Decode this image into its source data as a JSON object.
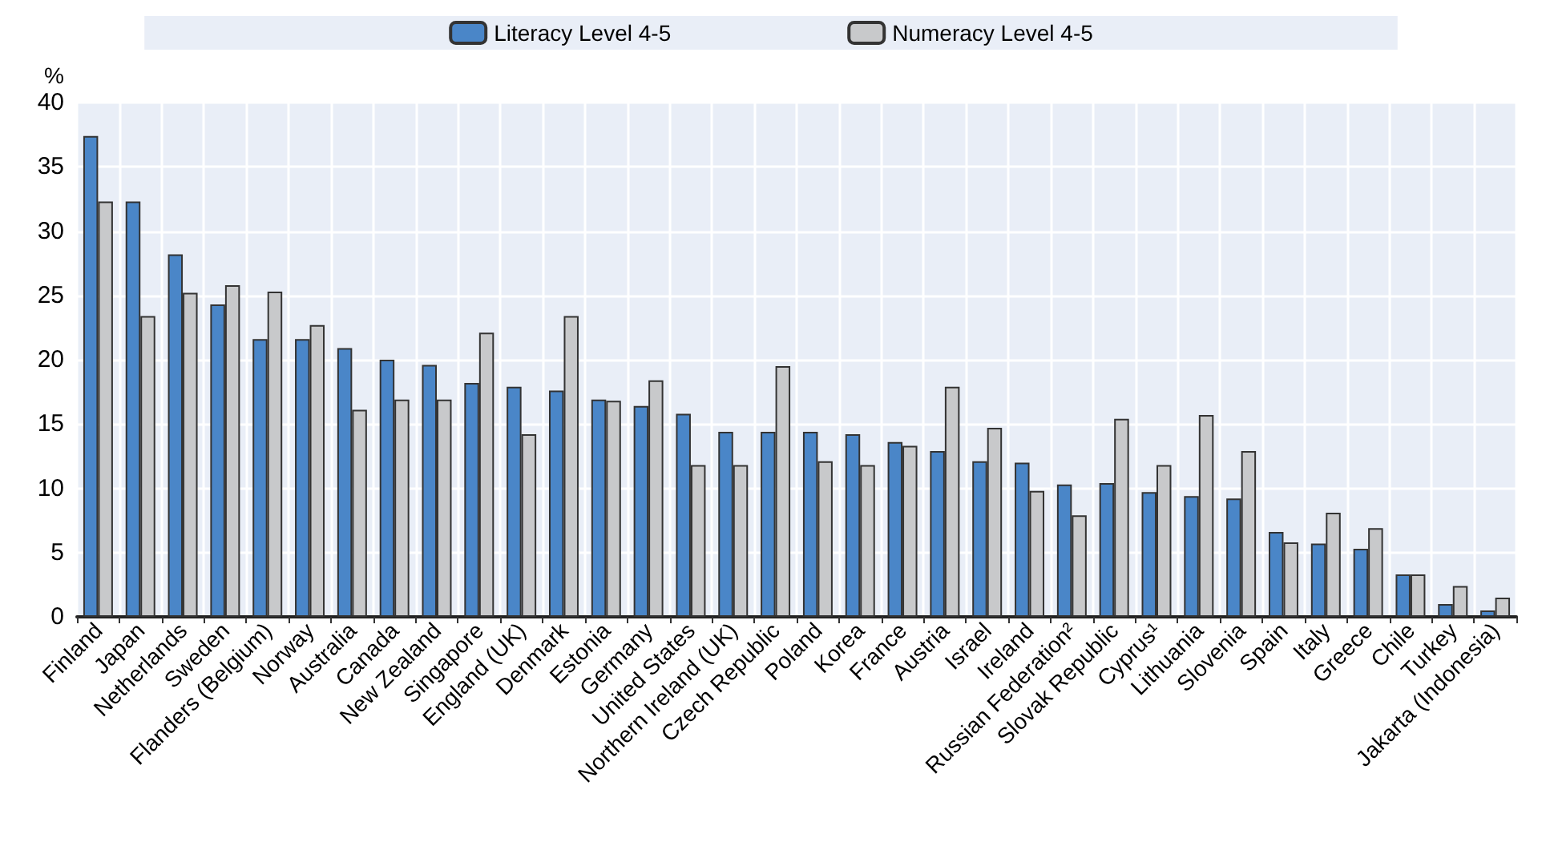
{
  "chart_data": {
    "type": "bar",
    "ylabel": "%",
    "categories": [
      "Finland",
      "Japan",
      "Netherlands",
      "Sweden",
      "Flanders (Belgium)",
      "Norway",
      "Australia",
      "Canada",
      "New Zealand",
      "Singapore",
      "England (UK)",
      "Denmark",
      "Estonia",
      "Germany",
      "United States",
      "Northern Ireland (UK)",
      "Czech Republic",
      "Poland",
      "Korea",
      "France",
      "Austria",
      "Israel",
      "Ireland",
      "Russian Federation²",
      "Slovak Republic",
      "Cyprus¹",
      "Lithuania",
      "Slovenia",
      "Spain",
      "Italy",
      "Greece",
      "Chile",
      "Turkey",
      "Jakarta (Indonesia)"
    ],
    "series": [
      {
        "name": "Literacy Level 4-5",
        "color": "#4a86c8",
        "values": [
          37.4,
          32.3,
          28.2,
          24.3,
          21.6,
          21.6,
          20.9,
          20.0,
          19.6,
          18.2,
          17.9,
          17.6,
          16.9,
          16.4,
          15.8,
          14.4,
          14.4,
          14.4,
          14.2,
          13.6,
          12.9,
          12.1,
          12.0,
          10.3,
          10.4,
          9.7,
          9.4,
          9.2,
          6.6,
          5.7,
          5.3,
          3.3,
          1.0,
          0.5
        ]
      },
      {
        "name": "Numeracy Level 4-5",
        "color": "#c8c9cb",
        "values": [
          32.3,
          23.4,
          25.2,
          25.8,
          25.3,
          22.7,
          16.1,
          16.9,
          16.9,
          22.1,
          14.2,
          23.4,
          16.8,
          18.4,
          11.8,
          11.8,
          19.5,
          12.1,
          11.8,
          13.3,
          17.9,
          14.7,
          9.8,
          7.9,
          15.4,
          11.8,
          15.7,
          12.9,
          5.8,
          8.1,
          6.9,
          3.3,
          2.4,
          1.5
        ]
      }
    ],
    "ylim": [
      0,
      40
    ],
    "yticks": [
      0,
      5,
      10,
      15,
      20,
      25,
      30,
      35,
      40
    ],
    "grid": true,
    "legend": "top"
  }
}
